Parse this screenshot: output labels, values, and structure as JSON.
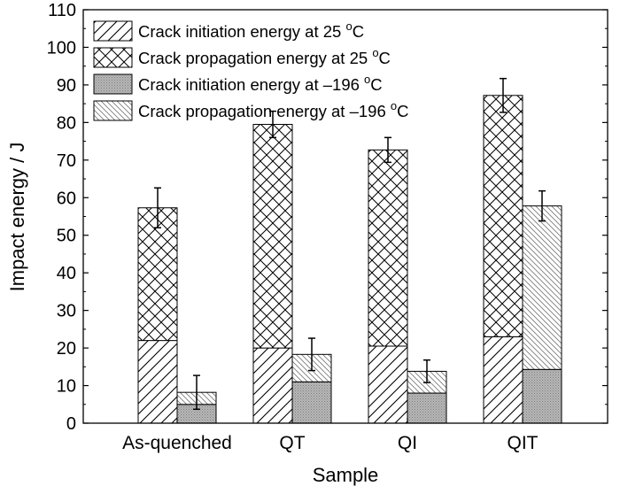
{
  "chart_data": {
    "type": "bar",
    "stacked": true,
    "title": "",
    "xlabel": "Sample",
    "ylabel": "Impact energy / J",
    "ylim": [
      0,
      110
    ],
    "yticks": [
      0,
      10,
      20,
      30,
      40,
      50,
      60,
      70,
      80,
      90,
      100,
      110
    ],
    "categories": [
      "As-quenched",
      "QT",
      "QI",
      "QIT"
    ],
    "grid": false,
    "legend_position": "top-left",
    "groups": [
      {
        "name": "25 °C",
        "total_error": [
          5.3,
          3.5,
          3.3,
          4.5
        ],
        "segments": [
          {
            "name": "Crack initiation energy at 25 °C",
            "pattern": "diagonal-hatch",
            "values": [
              22,
              20,
              20.5,
              23
            ]
          },
          {
            "name": "Crack propagation energy at 25 °C",
            "pattern": "cross-hatch",
            "values": [
              35.3,
              59.5,
              52.2,
              64.2
            ]
          }
        ]
      },
      {
        "name": "-196 °C",
        "total_error": [
          4.5,
          4.3,
          3.0,
          4.0
        ],
        "segments": [
          {
            "name": "Crack initiation energy at –196 °C",
            "pattern": "dotted-gray",
            "values": [
              5,
              11,
              8,
              14.3
            ]
          },
          {
            "name": "Crack propagation energy at –196 °C",
            "pattern": "fine-backslash-hatch",
            "values": [
              3.2,
              7.3,
              5.8,
              43.5
            ]
          }
        ]
      }
    ],
    "legend": [
      {
        "pre": "Crack initiation energy at 25 ",
        "sup": "o",
        "post": "C"
      },
      {
        "pre": "Crack propagation energy at 25 ",
        "sup": "o",
        "post": "C"
      },
      {
        "pre": "Crack initiation energy at –196 ",
        "sup": "o",
        "post": "C"
      },
      {
        "pre": "Crack propagation energy at –196 ",
        "sup": "o",
        "post": "C"
      }
    ]
  }
}
